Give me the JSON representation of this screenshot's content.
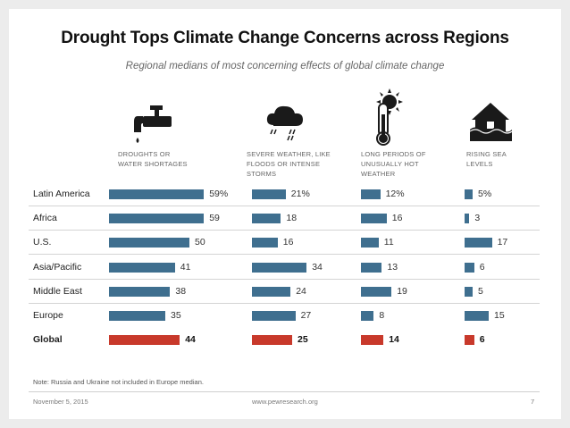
{
  "slide": {
    "title": "Drought Tops Climate Change Concerns across Regions",
    "subtitle": "Regional medians of most concerning effects of global climate change",
    "note": "Note: Russia and Ukraine not included in Europe median.",
    "date": "November 5, 2015",
    "website": "www.pewresearch.org",
    "page_number": "7"
  },
  "colors": {
    "bar": "#3f6f8f",
    "global_bar": "#c8392b",
    "icon": "#1a1a1a"
  },
  "icons": [
    "faucet-icon",
    "storm-cloud-icon",
    "thermometer-sun-icon",
    "house-flood-icon"
  ],
  "chart_data": {
    "type": "bar",
    "title": "Drought Tops Climate Change Concerns across Regions",
    "subtitle": "Regional medians of most concerning effects of global climate change",
    "categories": [
      "Latin America",
      "Africa",
      "U.S.",
      "Asia/Pacific",
      "Middle East",
      "Europe",
      "Global"
    ],
    "series": [
      {
        "name": "DROUGHTS OR WATER SHORTAGES",
        "header_lines": [
          "DROUGHTS OR",
          "WATER SHORTAGES"
        ],
        "values": [
          59,
          59,
          50,
          41,
          38,
          35,
          44
        ]
      },
      {
        "name": "SEVERE WEATHER, LIKE FLOODS OR INTENSE STORMS",
        "header_lines": [
          "SEVERE WEATHER, LIKE",
          "FLOODS OR INTENSE",
          "STORMS"
        ],
        "values": [
          21,
          18,
          16,
          34,
          24,
          27,
          25
        ]
      },
      {
        "name": "LONG PERIODS OF UNUSUALLY HOT WEATHER",
        "header_lines": [
          "LONG PERIODS OF",
          "UNUSUALLY HOT",
          "WEATHER"
        ],
        "values": [
          12,
          16,
          11,
          13,
          19,
          8,
          14
        ]
      },
      {
        "name": "RISING SEA LEVELS",
        "header_lines": [
          "RISING SEA",
          "LEVELS"
        ],
        "values": [
          5,
          3,
          17,
          6,
          5,
          15,
          6
        ]
      }
    ],
    "first_row_suffix": "%",
    "highlight_category": "Global",
    "unit": "%"
  }
}
